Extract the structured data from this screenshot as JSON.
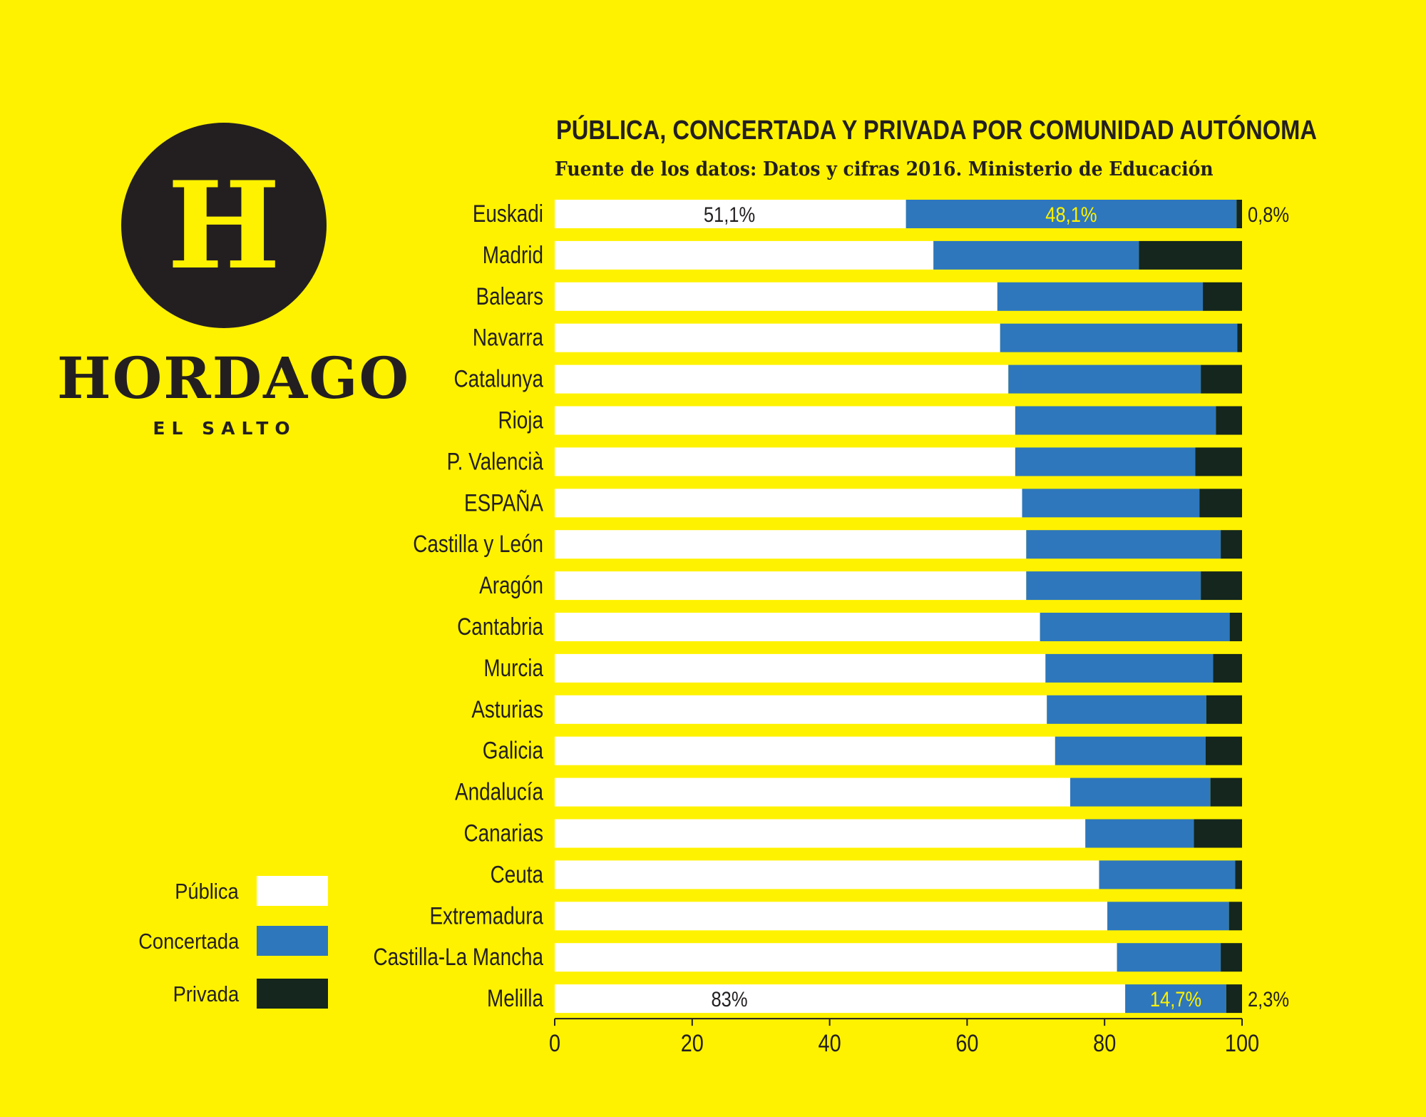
{
  "logo": {
    "letter": "H",
    "name": "HORDAGO",
    "subtitle": "EL SALTO"
  },
  "colors": {
    "background": "#FFF200",
    "publica": "#FFFFFF",
    "concertada": "#2E77BC",
    "privada": "#14261D",
    "text": "#231F20",
    "inner_label_light": "#FFF200"
  },
  "legend": [
    {
      "label": "Pública",
      "key": "publica"
    },
    {
      "label": "Concertada",
      "key": "concertada"
    },
    {
      "label": "Privada",
      "key": "privada"
    }
  ],
  "chart_data": {
    "type": "bar",
    "orientation": "horizontal",
    "stacked": true,
    "title": "PÚBLICA, CONCERTADA Y PRIVADA POR COMUNIDAD AUTÓNOMA",
    "subtitle": "Fuente de los datos: Datos y cifras 2016. Ministerio de Educación",
    "xlim": [
      0,
      100
    ],
    "x_ticks": [
      0,
      20,
      40,
      60,
      80,
      100
    ],
    "grid": false,
    "legend_position": "bottom-left",
    "categories": [
      "Euskadi",
      "Madrid",
      "Balears",
      "Navarra",
      "Catalunya",
      "Rioja",
      "P. Valencià",
      "ESPAÑA",
      "Castilla y León",
      "Aragón",
      "Cantabria",
      "Murcia",
      "Asturias",
      "Galicia",
      "Andalucía",
      "Canarias",
      "Ceuta",
      "Extremadura",
      "Castilla-La Mancha",
      "Melilla"
    ],
    "series": [
      {
        "name": "Pública",
        "values": [
          51.1,
          55.1,
          64.4,
          64.8,
          66.0,
          67.0,
          67.0,
          68.0,
          68.6,
          68.6,
          70.6,
          71.4,
          71.6,
          72.8,
          75.0,
          77.2,
          79.2,
          80.4,
          81.8,
          83.0
        ]
      },
      {
        "name": "Concertada",
        "values": [
          48.1,
          29.9,
          29.9,
          34.5,
          28.0,
          29.2,
          26.2,
          25.8,
          28.3,
          25.4,
          27.6,
          24.4,
          23.2,
          21.9,
          20.4,
          15.8,
          19.8,
          17.7,
          15.1,
          14.7
        ]
      },
      {
        "name": "Privada",
        "values": [
          0.8,
          15.0,
          5.7,
          0.7,
          6.0,
          3.8,
          6.8,
          6.2,
          3.1,
          6.0,
          1.8,
          4.2,
          5.2,
          5.3,
          4.6,
          7.0,
          1.0,
          1.9,
          3.1,
          2.3
        ]
      }
    ],
    "data_labels": [
      {
        "category": "Euskadi",
        "publica": "51,1%",
        "concertada": "48,1%",
        "privada": "0,8%"
      },
      {
        "category": "Melilla",
        "publica": "83%",
        "concertada": "14,7%",
        "privada": "2,3%"
      }
    ]
  }
}
